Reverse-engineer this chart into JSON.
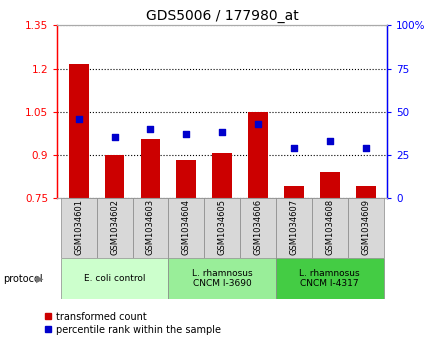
{
  "title": "GDS5006 / 177980_at",
  "samples": [
    "GSM1034601",
    "GSM1034602",
    "GSM1034603",
    "GSM1034604",
    "GSM1034605",
    "GSM1034606",
    "GSM1034607",
    "GSM1034608",
    "GSM1034609"
  ],
  "transformed_count": [
    1.215,
    0.9,
    0.955,
    0.88,
    0.905,
    1.05,
    0.79,
    0.84,
    0.79
  ],
  "percentile_rank": [
    46,
    35,
    40,
    37,
    38,
    43,
    29,
    33,
    29
  ],
  "baseline": 0.75,
  "ylim_left": [
    0.75,
    1.35
  ],
  "ylim_right": [
    0,
    100
  ],
  "yticks_left": [
    0.75,
    0.9,
    1.05,
    1.2,
    1.35
  ],
  "ytick_labels_left": [
    "0.75",
    "0.9",
    "1.05",
    "1.2",
    "1.35"
  ],
  "yticks_right": [
    0,
    25,
    50,
    75,
    100
  ],
  "ytick_labels_right": [
    "0",
    "25",
    "50",
    "75",
    "100%"
  ],
  "bar_color": "#cc0000",
  "dot_color": "#0000cc",
  "group_defs": [
    [
      0,
      2,
      "E. coli control",
      "#ccffcc"
    ],
    [
      3,
      5,
      "L. rhamnosus\nCNCM I-3690",
      "#99ee99"
    ],
    [
      6,
      8,
      "L. rhamnosus\nCNCM I-4317",
      "#44cc44"
    ]
  ],
  "sample_cell_color": "#d8d8d8",
  "legend_transformed": "transformed count",
  "legend_percentile": "percentile rank within the sample"
}
